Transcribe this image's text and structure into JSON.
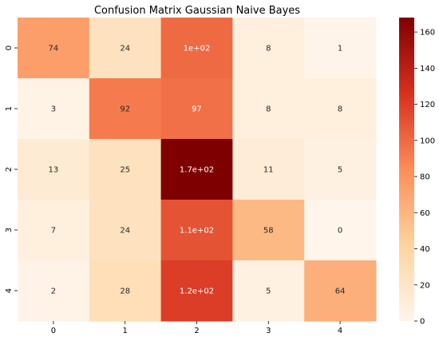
{
  "chart_data": {
    "type": "heatmap",
    "title": "Confusion Matrix Gaussian Naive Bayes",
    "xlabel": "",
    "ylabel": "",
    "x_categories": [
      "0",
      "1",
      "2",
      "3",
      "4"
    ],
    "y_categories": [
      "0",
      "1",
      "2",
      "3",
      "4"
    ],
    "values": [
      [
        74,
        24,
        100,
        8,
        1
      ],
      [
        3,
        92,
        97,
        8,
        8
      ],
      [
        13,
        25,
        170,
        11,
        5
      ],
      [
        7,
        24,
        110,
        58,
        0
      ],
      [
        2,
        28,
        120,
        5,
        64
      ]
    ],
    "labels": [
      [
        "74",
        "24",
        "1e+02",
        "8",
        "1"
      ],
      [
        "3",
        "92",
        "97",
        "8",
        "8"
      ],
      [
        "13",
        "25",
        "1.7e+02",
        "11",
        "5"
      ],
      [
        "7",
        "24",
        "1.1e+02",
        "58",
        "0"
      ],
      [
        "2",
        "28",
        "1.2e+02",
        "5",
        "64"
      ]
    ],
    "colormap": "OrRd-like",
    "color_stops": [
      "#fff5eb",
      "#fdd49e",
      "#fc8d59",
      "#d7301f",
      "#7f0000"
    ],
    "colorbar": {
      "range": [
        0,
        168
      ],
      "ticks": [
        0,
        20,
        40,
        60,
        80,
        100,
        120,
        140,
        160
      ],
      "position": "right"
    },
    "grid": false
  }
}
